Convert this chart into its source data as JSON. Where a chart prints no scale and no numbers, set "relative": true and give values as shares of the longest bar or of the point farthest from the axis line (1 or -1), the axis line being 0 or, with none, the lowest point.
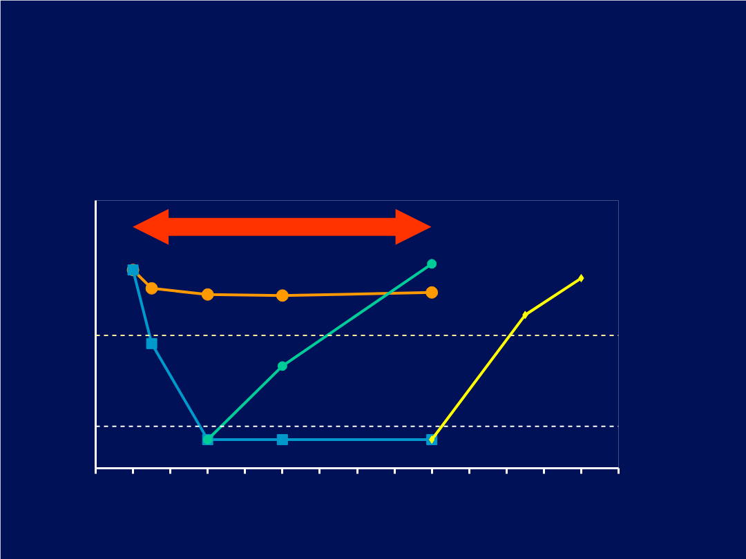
{
  "chart_data": {
    "type": "line",
    "relative": true,
    "grid": false,
    "line_style": "solid",
    "categories": [
      null,
      null,
      null,
      null,
      null,
      null,
      null,
      null,
      null,
      null,
      null,
      null,
      null,
      null,
      null,
      null,
      null,
      null,
      null,
      null,
      null,
      null,
      null,
      null,
      null,
      null,
      null,
      null,
      null
    ],
    "series": [
      {
        "color": "#ff9900",
        "marker": "circle",
        "values": [
          null,
          null,
          0.97,
          0.88,
          null,
          null,
          0.85,
          null,
          null,
          null,
          0.845,
          null,
          null,
          null,
          null,
          null,
          null,
          null,
          0.86,
          null,
          null,
          null,
          null,
          null,
          null,
          null,
          null,
          null,
          null
        ]
      },
      {
        "color": "#0099cc",
        "marker": "square",
        "values": [
          null,
          null,
          0.97,
          0.61,
          null,
          null,
          0.14,
          null,
          null,
          null,
          0.14,
          null,
          null,
          null,
          null,
          null,
          null,
          null,
          0.14,
          null,
          null,
          null,
          null,
          null,
          null,
          null,
          null,
          null,
          null
        ]
      },
      {
        "color": "#00cc99",
        "marker": "circle",
        "values": [
          null,
          null,
          null,
          null,
          null,
          null,
          0.14,
          null,
          null,
          null,
          0.5,
          null,
          null,
          null,
          null,
          null,
          null,
          null,
          1.0,
          null,
          null,
          null,
          null,
          null,
          null,
          null,
          null,
          null,
          null
        ]
      },
      {
        "color": "#ffff00",
        "marker": "diamond",
        "values": [
          null,
          null,
          null,
          null,
          null,
          null,
          null,
          null,
          null,
          null,
          null,
          null,
          null,
          null,
          null,
          null,
          null,
          null,
          0.14,
          null,
          null,
          null,
          null,
          0.75,
          null,
          null,
          0.93,
          null,
          null
        ]
      }
    ],
    "ref_lines": [
      {
        "axis": "y",
        "value": 0.65,
        "color": "#ffff99",
        "line_style": "dashed"
      },
      {
        "axis": "y",
        "value": 0.205,
        "color": "#ffffff",
        "line_style": "dashed"
      }
    ]
  }
}
